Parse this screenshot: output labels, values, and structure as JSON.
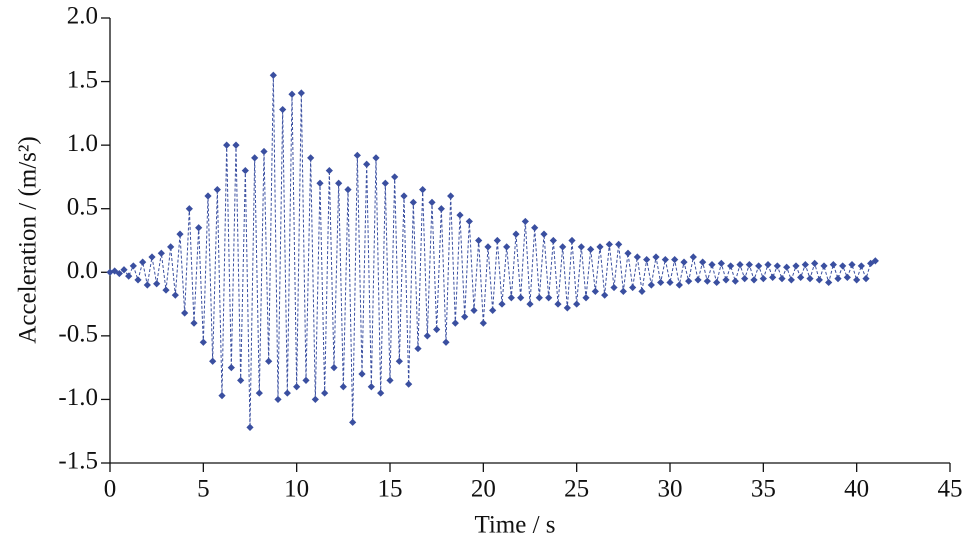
{
  "chart_data": {
    "type": "line",
    "xlabel": "Time / s",
    "ylabel": "Acceleration / (m/s²)",
    "xlim": [
      0,
      45
    ],
    "xticks": [
      0,
      5,
      10,
      15,
      20,
      25,
      30,
      35,
      40,
      45
    ],
    "ylim": [
      -1.5,
      2.0
    ],
    "yticks": [
      -1.5,
      {
        "value": -1,
        "label": "-1.0"
      },
      -0.5,
      {
        "value": 0,
        "label": "0.0"
      },
      0.5,
      {
        "value": 1,
        "label": "1.0"
      },
      1.5,
      {
        "value": 2,
        "label": "2.0"
      }
    ],
    "grid": false,
    "x": [
      0,
      0.25,
      0.5,
      0.75,
      1,
      1.25,
      1.5,
      1.75,
      2,
      2.25,
      2.5,
      2.75,
      3,
      3.25,
      3.5,
      3.75,
      4,
      4.25,
      4.5,
      4.75,
      5,
      5.25,
      5.5,
      5.75,
      6,
      6.25,
      6.5,
      6.75,
      7,
      7.25,
      7.5,
      7.75,
      8,
      8.25,
      8.5,
      8.75,
      9,
      9.25,
      9.5,
      9.75,
      10,
      10.25,
      10.5,
      10.75,
      11,
      11.25,
      11.5,
      11.75,
      12,
      12.25,
      12.5,
      12.75,
      13,
      13.25,
      13.5,
      13.75,
      14,
      14.25,
      14.5,
      14.75,
      15,
      15.25,
      15.5,
      15.75,
      16,
      16.25,
      16.5,
      16.75,
      17,
      17.25,
      17.5,
      17.75,
      18,
      18.25,
      18.5,
      18.75,
      19,
      19.25,
      19.5,
      19.75,
      20,
      20.25,
      20.5,
      20.75,
      21,
      21.25,
      21.5,
      21.75,
      22,
      22.25,
      22.5,
      22.75,
      23,
      23.25,
      23.5,
      23.75,
      24,
      24.25,
      24.5,
      24.75,
      25,
      25.25,
      25.5,
      25.75,
      26,
      26.25,
      26.5,
      26.75,
      27,
      27.25,
      27.5,
      27.75,
      28,
      28.25,
      28.5,
      28.75,
      29,
      29.25,
      29.5,
      29.75,
      30,
      30.25,
      30.5,
      30.75,
      31,
      31.25,
      31.5,
      31.75,
      32,
      32.25,
      32.5,
      32.75,
      33,
      33.25,
      33.5,
      33.75,
      34,
      34.25,
      34.5,
      34.75,
      35,
      35.25,
      35.5,
      35.75,
      36,
      36.25,
      36.5,
      36.75,
      37,
      37.25,
      37.5,
      37.75,
      38,
      38.25,
      38.5,
      38.75,
      39,
      39.25,
      39.5,
      39.75,
      40,
      40.25,
      40.5,
      40.75,
      41
    ],
    "series": [
      {
        "color": "#3a4fa0",
        "values": [
          0,
          0.01,
          -0.01,
          0.02,
          -0.03,
          0.05,
          -0.06,
          0.08,
          -0.1,
          0.12,
          -0.09,
          0.15,
          -0.14,
          0.2,
          -0.18,
          0.3,
          -0.32,
          0.5,
          -0.4,
          0.35,
          -0.55,
          0.6,
          -0.7,
          0.65,
          -0.97,
          1.0,
          -0.75,
          1.0,
          -0.85,
          0.8,
          -1.22,
          0.9,
          -0.95,
          0.95,
          -0.7,
          1.55,
          -1.0,
          1.28,
          -0.95,
          1.4,
          -0.9,
          1.41,
          -0.85,
          0.9,
          -1.0,
          0.7,
          -0.95,
          0.8,
          -0.75,
          0.7,
          -0.9,
          0.65,
          -1.18,
          0.92,
          -0.8,
          0.85,
          -0.9,
          0.9,
          -0.95,
          0.7,
          -0.85,
          0.75,
          -0.7,
          0.6,
          -0.88,
          0.55,
          -0.6,
          0.65,
          -0.5,
          0.55,
          -0.45,
          0.5,
          -0.55,
          0.6,
          -0.4,
          0.45,
          -0.35,
          0.4,
          -0.3,
          0.25,
          -0.4,
          0.2,
          -0.3,
          0.25,
          -0.25,
          0.2,
          -0.2,
          0.3,
          -0.2,
          0.4,
          -0.25,
          0.35,
          -0.2,
          0.3,
          -0.2,
          0.25,
          -0.25,
          0.2,
          -0.28,
          0.25,
          -0.25,
          0.2,
          -0.2,
          0.18,
          -0.15,
          0.2,
          -0.18,
          0.22,
          -0.12,
          0.22,
          -0.15,
          0.15,
          -0.12,
          0.12,
          -0.15,
          0.1,
          -0.1,
          0.12,
          -0.08,
          0.1,
          -0.08,
          0.1,
          -0.1,
          0.08,
          -0.07,
          0.12,
          -0.06,
          0.08,
          -0.07,
          0.06,
          -0.08,
          0.07,
          -0.06,
          0.05,
          -0.07,
          0.06,
          -0.05,
          0.06,
          -0.06,
          0.05,
          -0.05,
          0.06,
          -0.04,
          0.05,
          -0.05,
          0.04,
          -0.06,
          0.05,
          -0.04,
          0.06,
          -0.05,
          0.07,
          -0.06,
          0.05,
          -0.08,
          0.06,
          -0.05,
          0.05,
          -0.04,
          0.06,
          -0.06,
          0.05,
          -0.05,
          0.07,
          0.09
        ]
      }
    ]
  }
}
